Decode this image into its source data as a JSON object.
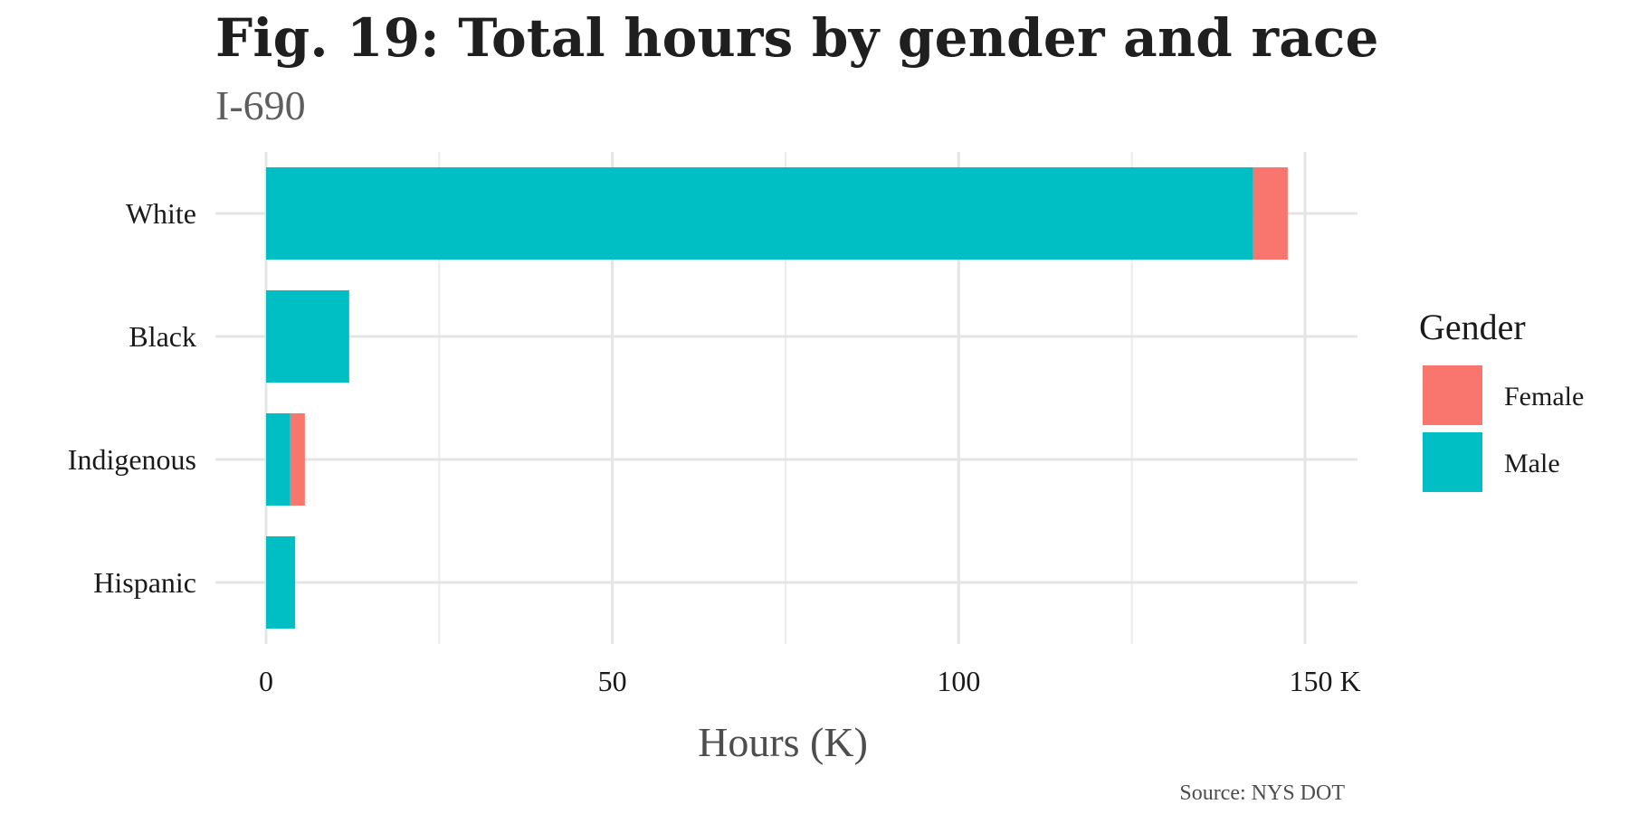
{
  "chart_data": {
    "type": "bar",
    "orientation": "horizontal",
    "stacked": true,
    "title": "Fig. 19: Total hours by gender and race",
    "subtitle": "I-690",
    "xlabel": "Hours (K)",
    "ylabel": "",
    "caption": "Source: NYS DOT",
    "categories": [
      "White",
      "Black",
      "Indigenous",
      "Hispanic"
    ],
    "series": [
      {
        "name": "Male",
        "color": "#00BFC4",
        "values": [
          142.5,
          12.0,
          3.5,
          4.2
        ]
      },
      {
        "name": "Female",
        "color": "#F8766D",
        "values": [
          5.0,
          0.0,
          2.1,
          0.0
        ]
      }
    ],
    "xlim": [
      0,
      157
    ],
    "xticks": [
      0,
      50,
      100,
      150
    ],
    "xtick_labels": [
      "0",
      "50",
      "100",
      "150 K"
    ],
    "grid": true,
    "legend": {
      "title": "Gender",
      "placement": "right",
      "entries": [
        {
          "label": "Female",
          "color": "#F8766D"
        },
        {
          "label": "Male",
          "color": "#00BFC4"
        }
      ]
    }
  }
}
